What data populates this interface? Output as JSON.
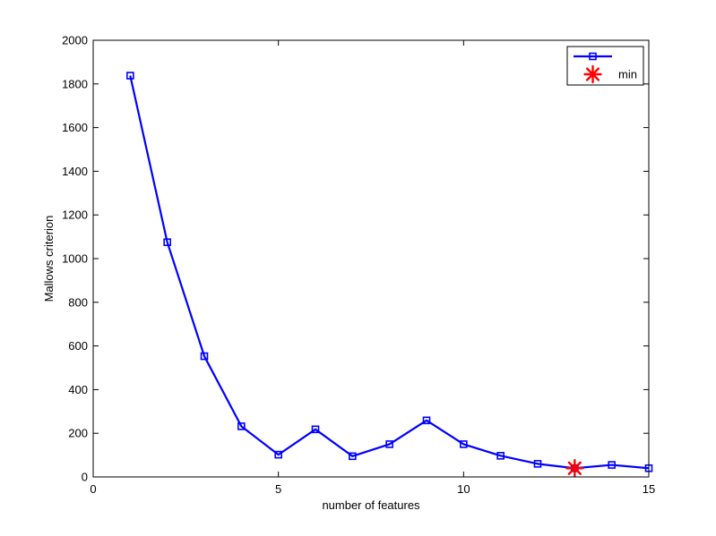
{
  "chart_data": {
    "type": "line",
    "title": "",
    "xlabel": "number of features",
    "ylabel": "Mallows criterion",
    "xlim": [
      0,
      15
    ],
    "ylim": [
      0,
      2000
    ],
    "xticks": [
      0,
      5,
      10,
      15
    ],
    "yticks": [
      0,
      200,
      400,
      600,
      800,
      1000,
      1200,
      1400,
      1600,
      1800,
      2000
    ],
    "grid": false,
    "legend_position": "top-right",
    "series": [
      {
        "name": "",
        "color": "#0000ff",
        "marker": "square",
        "x": [
          1,
          2,
          3,
          4,
          5,
          6,
          7,
          8,
          9,
          10,
          11,
          12,
          13,
          14,
          15
        ],
        "y": [
          1838,
          1075,
          553,
          232,
          102,
          218,
          95,
          150,
          259,
          150,
          97,
          60,
          40,
          55,
          40
        ]
      },
      {
        "name": "min",
        "color": "#ff0000",
        "marker": "asterisk",
        "x": [
          13
        ],
        "y": [
          40
        ]
      }
    ]
  }
}
